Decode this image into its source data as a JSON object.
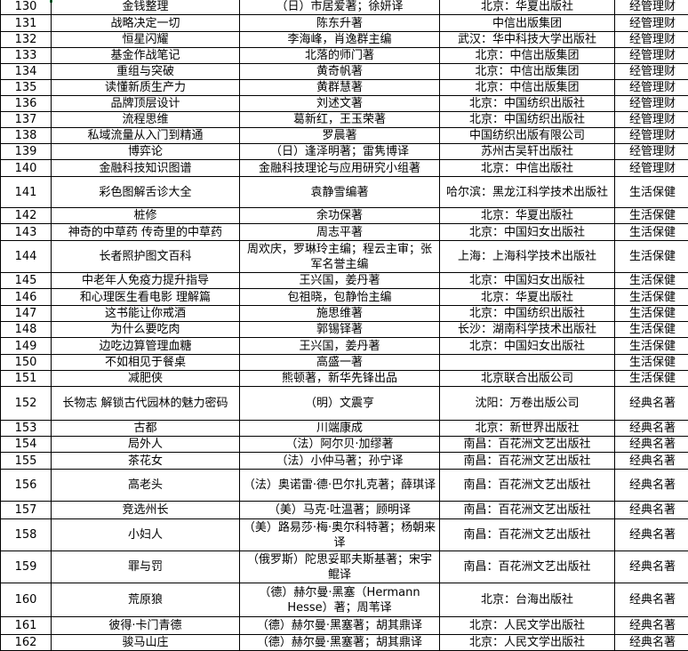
{
  "rows": [
    {
      "no": "130",
      "title": "金钱整理",
      "author": "（日）市居爱著；徐妍译",
      "publisher": "北京：华夏出版社",
      "category": "经管理财"
    },
    {
      "no": "131",
      "title": "战略决定一切",
      "author": "陈东升著",
      "publisher": "中信出版集团",
      "category": "经管理财"
    },
    {
      "no": "132",
      "title": "恒星闪耀",
      "author": "李海峰，肖逸群主编",
      "publisher": "武汉：华中科技大学出版社",
      "category": "经管理财"
    },
    {
      "no": "133",
      "title": "基金作战笔记",
      "author": "北落的师门著",
      "publisher": "北京：中信出版集团",
      "category": "经管理财"
    },
    {
      "no": "134",
      "title": "重组与突破",
      "author": "黄奇帆著",
      "publisher": "北京：中信出版集团",
      "category": "经管理财"
    },
    {
      "no": "135",
      "title": "读懂新质生产力",
      "author": "黄群慧著",
      "publisher": "北京：中信出版集团",
      "category": "经管理财"
    },
    {
      "no": "136",
      "title": "品牌顶层设计",
      "author": "刘述文著",
      "publisher": "北京：中国纺织出版社",
      "category": "经管理财"
    },
    {
      "no": "137",
      "title": "流程思维",
      "author": "葛新红，王玉荣著",
      "publisher": "北京：中国纺织出版社",
      "category": "经管理财"
    },
    {
      "no": "138",
      "title": "私域流量从入门到精通",
      "author": "罗晨著",
      "publisher": "中国纺织出版有限公司",
      "category": "经管理财"
    },
    {
      "no": "139",
      "title": "博弈论",
      "author": "（日）逢泽明著；雷隽博译",
      "publisher": "苏州古吴轩出版社",
      "category": "经管理财"
    },
    {
      "no": "140",
      "title": "金融科技知识图谱",
      "author": "金融科技理论与应用研究小组著",
      "publisher": "北京：中信出版社",
      "category": "经管理财"
    },
    {
      "no": "141",
      "title": "彩色图解舌诊大全",
      "author": "袁静雪编著",
      "publisher": "哈尔滨：黑龙江科学技术出版社",
      "category": "生活保健"
    },
    {
      "no": "142",
      "title": "桩修",
      "author": "余功保著",
      "publisher": "北京：华夏出版社",
      "category": "生活保健"
    },
    {
      "no": "143",
      "title": "神奇的中草药 传奇里的中草药",
      "author": "周志平著",
      "publisher": "北京：中国妇女出版社",
      "category": "生活保健"
    },
    {
      "no": "144",
      "title": "长者照护图文百科",
      "author": "周欢庆，罗琳玲主编；程云主审；张军名誉主编",
      "publisher": "上海：上海科学技术出版社",
      "category": "生活保健"
    },
    {
      "no": "145",
      "title": "中老年人免疫力提升指导",
      "author": "王兴国，姜丹著",
      "publisher": "北京：中国妇女出版社",
      "category": "生活保健"
    },
    {
      "no": "146",
      "title": "和心理医生看电影 理解篇",
      "author": "包祖晓，包静怡主编",
      "publisher": "北京：华夏出版社",
      "category": "生活保健"
    },
    {
      "no": "147",
      "title": "这书能让你戒酒",
      "author": "施思维著",
      "publisher": "北京：中国纺织出版社",
      "category": "生活保健"
    },
    {
      "no": "148",
      "title": "为什么要吃肉",
      "author": "郭锡铎著",
      "publisher": "长沙：湖南科学技术出版社",
      "category": "生活保健"
    },
    {
      "no": "149",
      "title": "边吃边算管理血糖",
      "author": "王兴国，姜丹著",
      "publisher": "北京：中国妇女出版社",
      "category": "生活保健"
    },
    {
      "no": "150",
      "title": "不如相见于餐桌",
      "author": "高盛一著",
      "publisher": "",
      "category": "生活保健"
    },
    {
      "no": "151",
      "title": "减肥侠",
      "author": "熊顿著，新华先锋出品",
      "publisher": "北京联合出版公司",
      "category": "生活保健"
    },
    {
      "no": "152",
      "title": "长物志 解锁古代园林的魅力密码",
      "author": "（明）文震亨",
      "publisher": "沈阳：万卷出版公司",
      "category": "经典名著"
    },
    {
      "no": "153",
      "title": "古都",
      "author": "川端康成",
      "publisher": "北京：新世界出版社",
      "category": "经典名著"
    },
    {
      "no": "154",
      "title": "局外人",
      "author": "（法）阿尔贝·加缪著",
      "publisher": "南昌：百花洲文艺出版社",
      "category": "经典名著"
    },
    {
      "no": "155",
      "title": "茶花女",
      "author": "（法）小仲马著；孙宁译",
      "publisher": "南昌：百花洲文艺出版社",
      "category": "经典名著"
    },
    {
      "no": "156",
      "title": "高老头",
      "author": "（法）奥诺雷·德·巴尔扎克著；薛琪译",
      "publisher": "南昌：百花洲文艺出版社",
      "category": "经典名著"
    },
    {
      "no": "157",
      "title": "竞选州长",
      "author": "（美）马克·吐温著；顾明译",
      "publisher": "南昌：百花洲文艺出版社",
      "category": "经典名著"
    },
    {
      "no": "158",
      "title": "小妇人",
      "author": "（美）路易莎·梅·奥尔科特著；杨朝来译",
      "publisher": "南昌：百花洲文艺出版社",
      "category": "经典名著"
    },
    {
      "no": "159",
      "title": "罪与罚",
      "author": "（俄罗斯）陀思妥耶夫斯基著；宋宇鲲译",
      "publisher": "南昌：百花洲文艺出版社",
      "category": "经典名著"
    },
    {
      "no": "160",
      "title": "荒原狼",
      "author": "（德）赫尔曼·黑塞（Hermann Hesse）著；周苇译",
      "publisher": "北京：台海出版社",
      "category": "经典名著"
    },
    {
      "no": "161",
      "title": "彼得·卡门青德",
      "author": "（德）赫尔曼·黑塞著；胡其鼎译",
      "publisher": "北京：人民文学出版社",
      "category": "经典名著"
    },
    {
      "no": "162",
      "title": "骏马山庄",
      "author": "（德）赫尔曼·黑塞著；胡其鼎译",
      "publisher": "北京：人民文学出版社",
      "category": "经典名著"
    }
  ]
}
